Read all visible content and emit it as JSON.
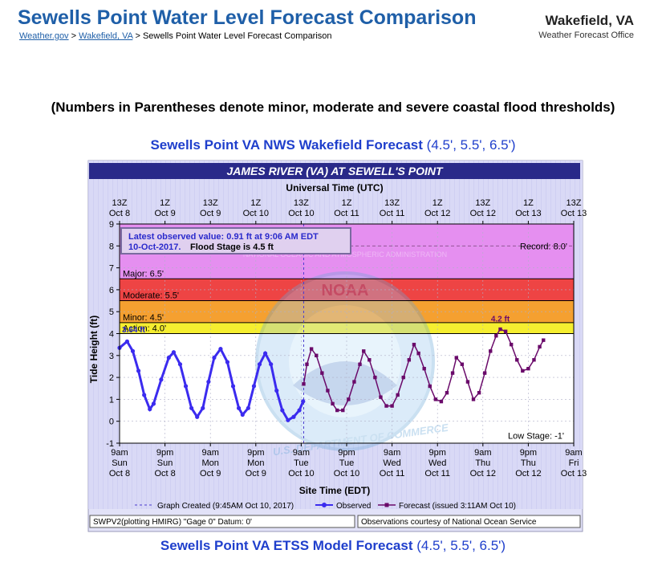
{
  "header": {
    "title": "Sewells Point Water Level Forecast Comparison",
    "breadcrumb_home": "Weather.gov",
    "breadcrumb_sep1": ">",
    "breadcrumb_office": "Wakefield, VA",
    "breadcrumb_sep2": ">",
    "breadcrumb_current": "Sewells Point Water Level Forecast Comparison",
    "office_name": "Wakefield, VA",
    "office_subtitle": "Weather Forecast Office"
  },
  "note": "(Numbers in Parentheses denote minor, moderate and severe coastal flood thresholds)",
  "section1": {
    "title": "Sewells Point VA NWS Wakefield Forecast",
    "thresholds": "(4.5', 5.5', 6.5')"
  },
  "section2": {
    "title": "Sewells Point VA ETSS Model Forecast",
    "thresholds": "(4.5', 5.5', 6.5')"
  },
  "chart_data": {
    "type": "line",
    "title": "JAMES RIVER (VA) AT SEWELL'S POINT",
    "top_axis_label": "Universal Time (UTC)",
    "xlabel": "Site Time (EDT)",
    "ylabel": "Tide Height (ft)",
    "ylim": [
      -1,
      9
    ],
    "yticks": [
      "-1",
      "0",
      "1",
      "2",
      "3",
      "4",
      "5",
      "6",
      "7",
      "8",
      "9"
    ],
    "x_hours_range": [
      0,
      120
    ],
    "top_ticks": [
      {
        "l1": "13Z",
        "l2": "Oct 8"
      },
      {
        "l1": "1Z",
        "l2": "Oct 9"
      },
      {
        "l1": "13Z",
        "l2": "Oct 9"
      },
      {
        "l1": "1Z",
        "l2": "Oct 10"
      },
      {
        "l1": "13Z",
        "l2": "Oct 10"
      },
      {
        "l1": "1Z",
        "l2": "Oct 11"
      },
      {
        "l1": "13Z",
        "l2": "Oct 11"
      },
      {
        "l1": "1Z",
        "l2": "Oct 12"
      },
      {
        "l1": "13Z",
        "l2": "Oct 12"
      },
      {
        "l1": "1Z",
        "l2": "Oct 13"
      },
      {
        "l1": "13Z",
        "l2": "Oct 13"
      }
    ],
    "bottom_ticks": [
      {
        "l1": "9am",
        "l2": "Sun",
        "l3": "Oct 8"
      },
      {
        "l1": "9pm",
        "l2": "Sun",
        "l3": "Oct 8"
      },
      {
        "l1": "9am",
        "l2": "Mon",
        "l3": "Oct 9"
      },
      {
        "l1": "9pm",
        "l2": "Mon",
        "l3": "Oct 9"
      },
      {
        "l1": "9am",
        "l2": "Tue",
        "l3": "Oct 10"
      },
      {
        "l1": "9pm",
        "l2": "Tue",
        "l3": "Oct 10"
      },
      {
        "l1": "9am",
        "l2": "Wed",
        "l3": "Oct 11"
      },
      {
        "l1": "9pm",
        "l2": "Wed",
        "l3": "Oct 11"
      },
      {
        "l1": "9am",
        "l2": "Thu",
        "l3": "Oct 12"
      },
      {
        "l1": "9pm",
        "l2": "Thu",
        "l3": "Oct 12"
      },
      {
        "l1": "9am",
        "l2": "Fri",
        "l3": "Oct 13"
      }
    ],
    "bands": [
      {
        "name": "record",
        "from": 6.5,
        "to": 9,
        "color": "#e58ff0"
      },
      {
        "name": "major",
        "from": 5.5,
        "to": 6.5,
        "color": "#ee4444"
      },
      {
        "name": "moderate",
        "from": 4.5,
        "to": 5.5,
        "color": "#f5a030"
      },
      {
        "name": "minor",
        "from": 4.0,
        "to": 4.5,
        "color": "#f5ee30"
      }
    ],
    "thresholds": [
      {
        "label": "Major: 6.5'",
        "value": 6.5
      },
      {
        "label": "Moderate: 5.5'",
        "value": 5.5
      },
      {
        "label": "Minor: 4.5'",
        "value": 4.5
      },
      {
        "label": "Action: 4.0'",
        "value": 4.0
      }
    ],
    "record_label": "Record: 8.0'",
    "record_value": 8.0,
    "low_stage_label": "Low Stage: -1'",
    "latest_obs_line1": "Latest observed value: 0.91 ft at 9:06 AM EDT",
    "latest_obs_line2": "10-Oct-2017.",
    "flood_stage_text": "Flood Stage is 4.5 ft",
    "observed_peak_label": "3.64 ft",
    "forecast_peak_label": "4.2 ft",
    "graph_created_hour": 48.65,
    "series": [
      {
        "name": "Observed",
        "color": "#3b2bef",
        "points": [
          [
            0,
            3.35
          ],
          [
            2,
            3.64
          ],
          [
            3.5,
            3.2
          ],
          [
            5,
            2.3
          ],
          [
            6.5,
            1.2
          ],
          [
            8,
            0.55
          ],
          [
            9,
            0.8
          ],
          [
            11,
            1.9
          ],
          [
            13,
            2.9
          ],
          [
            14.3,
            3.15
          ],
          [
            16,
            2.6
          ],
          [
            17.5,
            1.6
          ],
          [
            19,
            0.6
          ],
          [
            20.5,
            0.2
          ],
          [
            22,
            0.6
          ],
          [
            23.5,
            1.8
          ],
          [
            25,
            2.9
          ],
          [
            26.7,
            3.3
          ],
          [
            28.5,
            2.7
          ],
          [
            30,
            1.6
          ],
          [
            31.5,
            0.6
          ],
          [
            32.5,
            0.3
          ],
          [
            34,
            0.6
          ],
          [
            35.5,
            1.6
          ],
          [
            37,
            2.6
          ],
          [
            38.5,
            3.1
          ],
          [
            40,
            2.6
          ],
          [
            41.5,
            1.4
          ],
          [
            43,
            0.5
          ],
          [
            44.5,
            0.05
          ],
          [
            46,
            0.2
          ],
          [
            47.5,
            0.5
          ],
          [
            48.5,
            0.91
          ]
        ]
      },
      {
        "name": "Forecast (issued 3:11AM Oct 10)",
        "color": "#6a0a6a",
        "points": [
          [
            48.65,
            1.7
          ],
          [
            49.5,
            2.6
          ],
          [
            50.7,
            3.3
          ],
          [
            52,
            3.0
          ],
          [
            53.5,
            2.2
          ],
          [
            55,
            1.4
          ],
          [
            56.3,
            0.8
          ],
          [
            57.5,
            0.5
          ],
          [
            59,
            0.5
          ],
          [
            60.5,
            1.0
          ],
          [
            62,
            1.8
          ],
          [
            63.5,
            2.6
          ],
          [
            64.5,
            3.2
          ],
          [
            66,
            2.8
          ],
          [
            67.5,
            2.0
          ],
          [
            69,
            1.1
          ],
          [
            70.5,
            0.7
          ],
          [
            72,
            0.7
          ],
          [
            73.5,
            1.2
          ],
          [
            75,
            2.0
          ],
          [
            76.5,
            2.8
          ],
          [
            77.8,
            3.5
          ],
          [
            79,
            3.1
          ],
          [
            80.5,
            2.4
          ],
          [
            82,
            1.6
          ],
          [
            83.5,
            1.0
          ],
          [
            85,
            0.9
          ],
          [
            86.5,
            1.3
          ],
          [
            88,
            2.2
          ],
          [
            89,
            2.9
          ],
          [
            90.5,
            2.6
          ],
          [
            92,
            1.8
          ],
          [
            93.5,
            1.0
          ],
          [
            95,
            1.3
          ],
          [
            96.5,
            2.2
          ],
          [
            98,
            3.2
          ],
          [
            99.5,
            3.9
          ],
          [
            100.6,
            4.2
          ],
          [
            102,
            4.1
          ],
          [
            103.5,
            3.5
          ],
          [
            105,
            2.8
          ],
          [
            106.5,
            2.3
          ],
          [
            108,
            2.4
          ],
          [
            109.5,
            2.8
          ],
          [
            111,
            3.4
          ],
          [
            112,
            3.7
          ]
        ]
      }
    ],
    "legend": {
      "created_label": "Graph Created (9:45AM Oct 10, 2017)",
      "observed_label": "Observed",
      "forecast_label": "Forecast (issued 3:11AM Oct 10)"
    },
    "footer_left": "SWPV2(plotting HMIRG) \"Gage 0\" Datum: 0'",
    "footer_right": "Observations courtesy of National Ocean Service",
    "watermark_text": "NATIONAL OCEANIC AND ATMOSPHERIC ADMINISTRATION",
    "watermark_text2": "U.S. DEPARTMENT OF COMMERCE",
    "watermark_text3": "NOAA"
  }
}
